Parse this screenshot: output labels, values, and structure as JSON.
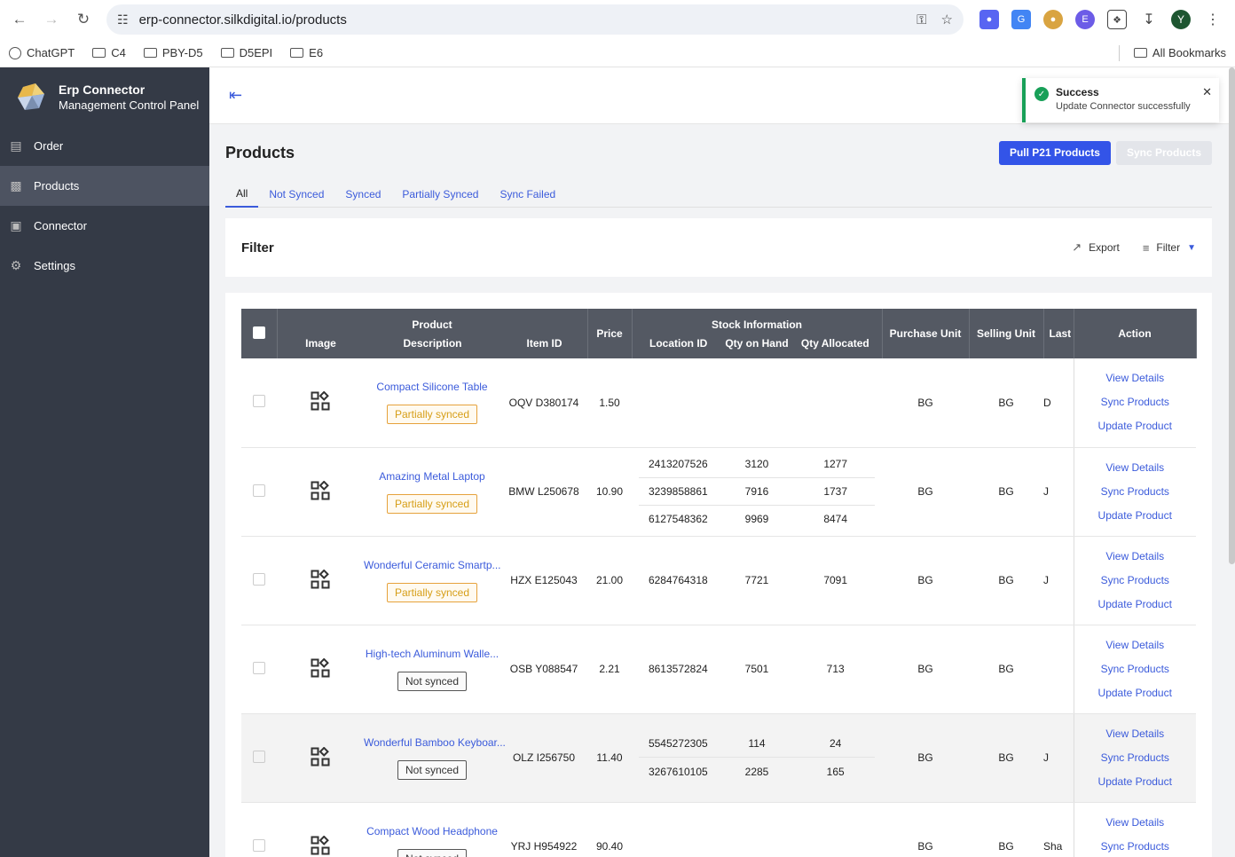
{
  "browser": {
    "url": "erp-connector.silkdigital.io/products",
    "profile_initial": "Y",
    "bookmarks": [
      "ChatGPT",
      "C4",
      "PBY-D5",
      "D5EPI",
      "E6"
    ],
    "all_bookmarks": "All Bookmarks"
  },
  "sidebar": {
    "brand_title": "Erp Connector",
    "brand_subtitle": "Management Control Panel",
    "items": [
      {
        "label": "Order",
        "icon": "store-icon"
      },
      {
        "label": "Products",
        "icon": "gift-icon"
      },
      {
        "label": "Connector",
        "icon": "ticket-icon"
      },
      {
        "label": "Settings",
        "icon": "gear-icon"
      }
    ],
    "active_index": 1
  },
  "toast": {
    "title": "Success",
    "message": "Update Connector successfully"
  },
  "page": {
    "title": "Products",
    "pull_button": "Pull P21 Products",
    "sync_button": "Sync Products",
    "tabs": [
      "All",
      "Not Synced",
      "Synced",
      "Partially Synced",
      "Sync Failed"
    ],
    "active_tab": 0
  },
  "filter": {
    "title": "Filter",
    "export_label": "Export",
    "filter_label": "Filter"
  },
  "table": {
    "headers": {
      "image": "Image",
      "product": "Product",
      "description": "Description",
      "item_id": "Item ID",
      "price": "Price",
      "stock_information": "Stock Information",
      "location_id": "Location ID",
      "qty_on_hand": "Qty on Hand",
      "qty_allocated": "Qty Allocated",
      "purchase_unit": "Purchase Unit",
      "selling_unit": "Selling Unit",
      "last": "Last",
      "action": "Action"
    },
    "actions": [
      "View Details",
      "Sync Products",
      "Update Product"
    ],
    "rows": [
      {
        "name": "Compact Silicone Table",
        "status": "Partially synced",
        "status_type": "partial",
        "item_id": "OQV D380174",
        "price": "1.50",
        "stock": [],
        "purchase_unit": "BG",
        "selling_unit": "BG",
        "last": "D"
      },
      {
        "name": "Amazing Metal Laptop",
        "status": "Partially synced",
        "status_type": "partial",
        "item_id": "BMW L250678",
        "price": "10.90",
        "stock": [
          [
            "2413207526",
            "3120",
            "1277"
          ],
          [
            "3239858861",
            "7916",
            "1737"
          ],
          [
            "6127548362",
            "9969",
            "8474"
          ]
        ],
        "purchase_unit": "BG",
        "selling_unit": "BG",
        "last": "J"
      },
      {
        "name": "Wonderful Ceramic Smartp...",
        "status": "Partially synced",
        "status_type": "partial",
        "item_id": "HZX E125043",
        "price": "21.00",
        "stock": [
          [
            "6284764318",
            "7721",
            "7091"
          ]
        ],
        "purchase_unit": "BG",
        "selling_unit": "BG",
        "last": "J"
      },
      {
        "name": "High-tech Aluminum Walle...",
        "status": "Not synced",
        "status_type": "not",
        "item_id": "OSB Y088547",
        "price": "2.21",
        "stock": [
          [
            "8613572824",
            "7501",
            "713"
          ]
        ],
        "purchase_unit": "BG",
        "selling_unit": "BG",
        "last": ""
      },
      {
        "name": "Wonderful Bamboo Keyboar...",
        "status": "Not synced",
        "status_type": "not",
        "item_id": "OLZ I256750",
        "price": "11.40",
        "stock": [
          [
            "5545272305",
            "114",
            "24"
          ],
          [
            "3267610105",
            "2285",
            "165"
          ]
        ],
        "purchase_unit": "BG",
        "selling_unit": "BG",
        "last": "J"
      },
      {
        "name": "Compact Wood Headphone",
        "status": "Not synced",
        "status_type": "not",
        "item_id": "YRJ H954922",
        "price": "90.40",
        "stock": [],
        "purchase_unit": "BG",
        "selling_unit": "BG",
        "last": "Sha"
      }
    ]
  }
}
